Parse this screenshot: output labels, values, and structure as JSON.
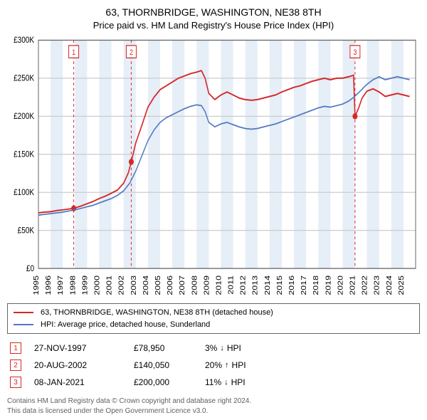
{
  "title": "63, THORNBRIDGE, WASHINGTON, NE38 8TH",
  "subtitle": "Price paid vs. HM Land Registry's House Price Index (HPI)",
  "chart": {
    "type": "line",
    "background_color": "#ffffff",
    "plot_border_color": "#666666",
    "grid_color": "#cccccc",
    "band_color": "#e6eef7",
    "label_fontsize": 11,
    "tick_fontsize": 10,
    "x": {
      "min": 1995,
      "max": 2026,
      "ticks": [
        1995,
        1996,
        1997,
        1998,
        1999,
        2000,
        2001,
        2002,
        2003,
        2004,
        2005,
        2006,
        2007,
        2008,
        2009,
        2010,
        2011,
        2012,
        2013,
        2014,
        2015,
        2016,
        2017,
        2018,
        2019,
        2020,
        2021,
        2022,
        2023,
        2024,
        2025
      ]
    },
    "y": {
      "min": 0,
      "max": 300000,
      "ticks": [
        0,
        50000,
        100000,
        150000,
        200000,
        250000,
        300000
      ],
      "tick_labels": [
        "£0",
        "£50K",
        "£100K",
        "£150K",
        "£200K",
        "£250K",
        "£300K"
      ]
    },
    "series": [
      {
        "id": "property",
        "label": "63, THORNBRIDGE, WASHINGTON, NE38 8TH (detached house)",
        "color": "#d62728",
        "line_width": 1.6,
        "points": [
          [
            1995.0,
            73000
          ],
          [
            1995.5,
            74000
          ],
          [
            1996.0,
            74500
          ],
          [
            1996.5,
            76000
          ],
          [
            1997.0,
            77000
          ],
          [
            1997.5,
            78000
          ],
          [
            1997.9,
            78950
          ],
          [
            1998.5,
            82000
          ],
          [
            1999.0,
            85000
          ],
          [
            1999.5,
            88000
          ],
          [
            2000.0,
            92000
          ],
          [
            2000.5,
            95000
          ],
          [
            2001.0,
            99000
          ],
          [
            2001.5,
            103000
          ],
          [
            2002.0,
            112000
          ],
          [
            2002.4,
            126000
          ],
          [
            2002.63,
            140050
          ],
          [
            2003.0,
            165000
          ],
          [
            2003.5,
            188000
          ],
          [
            2004.0,
            212000
          ],
          [
            2004.5,
            225000
          ],
          [
            2005.0,
            235000
          ],
          [
            2005.5,
            240000
          ],
          [
            2006.0,
            245000
          ],
          [
            2006.5,
            250000
          ],
          [
            2007.0,
            253000
          ],
          [
            2007.5,
            256000
          ],
          [
            2008.0,
            258000
          ],
          [
            2008.4,
            260000
          ],
          [
            2008.7,
            250000
          ],
          [
            2009.0,
            230000
          ],
          [
            2009.5,
            222000
          ],
          [
            2010.0,
            228000
          ],
          [
            2010.5,
            232000
          ],
          [
            2011.0,
            228000
          ],
          [
            2011.5,
            224000
          ],
          [
            2012.0,
            222000
          ],
          [
            2012.5,
            221000
          ],
          [
            2013.0,
            222000
          ],
          [
            2013.5,
            224000
          ],
          [
            2014.0,
            226000
          ],
          [
            2014.5,
            228000
          ],
          [
            2015.0,
            232000
          ],
          [
            2015.5,
            235000
          ],
          [
            2016.0,
            238000
          ],
          [
            2016.5,
            240000
          ],
          [
            2017.0,
            243000
          ],
          [
            2017.5,
            246000
          ],
          [
            2018.0,
            248000
          ],
          [
            2018.5,
            250000
          ],
          [
            2019.0,
            248000
          ],
          [
            2019.5,
            250000
          ],
          [
            2020.0,
            250000
          ],
          [
            2020.5,
            252000
          ],
          [
            2020.9,
            254000
          ],
          [
            2021.02,
            200000
          ],
          [
            2021.3,
            210000
          ],
          [
            2021.6,
            224000
          ],
          [
            2022.0,
            233000
          ],
          [
            2022.5,
            236000
          ],
          [
            2023.0,
            232000
          ],
          [
            2023.5,
            226000
          ],
          [
            2024.0,
            228000
          ],
          [
            2024.5,
            230000
          ],
          [
            2025.0,
            228000
          ],
          [
            2025.5,
            226000
          ]
        ]
      },
      {
        "id": "hpi",
        "label": "HPI: Average price, detached house, Sunderland",
        "color": "#4e77c1",
        "line_width": 1.4,
        "points": [
          [
            1995.0,
            70000
          ],
          [
            1995.5,
            71000
          ],
          [
            1996.0,
            72000
          ],
          [
            1996.5,
            73000
          ],
          [
            1997.0,
            74000
          ],
          [
            1997.5,
            75500
          ],
          [
            1998.0,
            77000
          ],
          [
            1998.5,
            79000
          ],
          [
            1999.0,
            81000
          ],
          [
            1999.5,
            83000
          ],
          [
            2000.0,
            86000
          ],
          [
            2000.5,
            89000
          ],
          [
            2001.0,
            92000
          ],
          [
            2001.5,
            96000
          ],
          [
            2002.0,
            102000
          ],
          [
            2002.5,
            112000
          ],
          [
            2003.0,
            128000
          ],
          [
            2003.5,
            148000
          ],
          [
            2004.0,
            168000
          ],
          [
            2004.5,
            182000
          ],
          [
            2005.0,
            192000
          ],
          [
            2005.5,
            198000
          ],
          [
            2006.0,
            202000
          ],
          [
            2006.5,
            206000
          ],
          [
            2007.0,
            210000
          ],
          [
            2007.5,
            213000
          ],
          [
            2008.0,
            215000
          ],
          [
            2008.4,
            214000
          ],
          [
            2008.7,
            206000
          ],
          [
            2009.0,
            192000
          ],
          [
            2009.5,
            186000
          ],
          [
            2010.0,
            190000
          ],
          [
            2010.5,
            192000
          ],
          [
            2011.0,
            189000
          ],
          [
            2011.5,
            186000
          ],
          [
            2012.0,
            184000
          ],
          [
            2012.5,
            183000
          ],
          [
            2013.0,
            184000
          ],
          [
            2013.5,
            186000
          ],
          [
            2014.0,
            188000
          ],
          [
            2014.5,
            190000
          ],
          [
            2015.0,
            193000
          ],
          [
            2015.5,
            196000
          ],
          [
            2016.0,
            199000
          ],
          [
            2016.5,
            202000
          ],
          [
            2017.0,
            205000
          ],
          [
            2017.5,
            208000
          ],
          [
            2018.0,
            211000
          ],
          [
            2018.5,
            213000
          ],
          [
            2019.0,
            212000
          ],
          [
            2019.5,
            214000
          ],
          [
            2020.0,
            216000
          ],
          [
            2020.5,
            220000
          ],
          [
            2021.0,
            226000
          ],
          [
            2021.5,
            234000
          ],
          [
            2022.0,
            242000
          ],
          [
            2022.5,
            248000
          ],
          [
            2023.0,
            252000
          ],
          [
            2023.5,
            248000
          ],
          [
            2024.0,
            250000
          ],
          [
            2024.5,
            252000
          ],
          [
            2025.0,
            250000
          ],
          [
            2025.5,
            248000
          ]
        ]
      }
    ],
    "markers": [
      {
        "num": "1",
        "x": 1997.9,
        "y": 78950,
        "color": "#d62728"
      },
      {
        "num": "2",
        "x": 2002.63,
        "y": 140050,
        "color": "#d62728"
      },
      {
        "num": "3",
        "x": 2021.02,
        "y": 200000,
        "color": "#d62728"
      }
    ]
  },
  "legend": {
    "border_color": "#666666",
    "fontsize": 11,
    "items": [
      {
        "color": "#d62728",
        "label": "63, THORNBRIDGE, WASHINGTON, NE38 8TH (detached house)"
      },
      {
        "color": "#4e77c1",
        "label": "HPI: Average price, detached house, Sunderland"
      }
    ]
  },
  "marker_rows": [
    {
      "num": "1",
      "color": "#d62728",
      "date": "27-NOV-1997",
      "price": "£78,950",
      "delta_pct": "3%",
      "delta_dir": "down",
      "delta_suffix": "HPI"
    },
    {
      "num": "2",
      "color": "#d62728",
      "date": "20-AUG-2002",
      "price": "£140,050",
      "delta_pct": "20%",
      "delta_dir": "up",
      "delta_suffix": "HPI"
    },
    {
      "num": "3",
      "color": "#d62728",
      "date": "08-JAN-2021",
      "price": "£200,000",
      "delta_pct": "11%",
      "delta_dir": "down",
      "delta_suffix": "HPI"
    }
  ],
  "footer": {
    "line1": "Contains HM Land Registry data © Crown copyright and database right 2024.",
    "line2": "This data is licensed under the Open Government Licence v3.0.",
    "color": "#606060",
    "fontsize": 10
  }
}
